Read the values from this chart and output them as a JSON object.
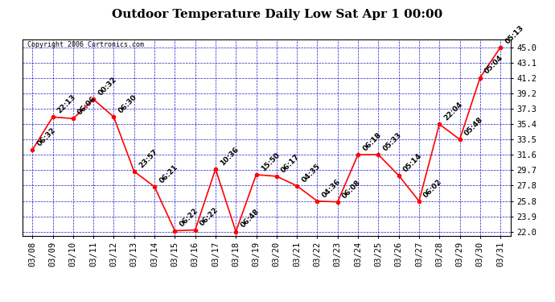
{
  "title": "Outdoor Temperature Daily Low Sat Apr 1 00:00",
  "copyright": "Copyright 2006 Curtronics.com",
  "x_labels": [
    "03/08",
    "03/09",
    "03/10",
    "03/11",
    "03/12",
    "03/13",
    "03/14",
    "03/15",
    "03/16",
    "03/17",
    "03/18",
    "03/19",
    "03/20",
    "03/21",
    "03/22",
    "03/23",
    "03/24",
    "03/25",
    "03/26",
    "03/27",
    "03/28",
    "03/29",
    "03/30",
    "03/31"
  ],
  "y_values": [
    32.2,
    36.3,
    36.1,
    38.5,
    36.3,
    29.5,
    27.6,
    22.1,
    22.2,
    29.8,
    22.0,
    29.1,
    28.9,
    27.7,
    25.8,
    25.7,
    31.6,
    31.6,
    29.0,
    25.8,
    35.4,
    33.5,
    41.2,
    45.0
  ],
  "point_labels": [
    "06:32",
    "22:13",
    "06:06",
    "00:32",
    "06:30",
    "23:57",
    "06:21",
    "06:22",
    "06:22",
    "10:36",
    "06:48",
    "15:50",
    "06:17",
    "04:35",
    "04:36",
    "06:08",
    "06:18",
    "05:33",
    "05:14",
    "06:02",
    "22:04",
    "05:48",
    "05:04",
    "05:13"
  ],
  "y_ticks": [
    22.0,
    23.9,
    25.8,
    27.8,
    29.7,
    31.6,
    33.5,
    35.4,
    37.3,
    39.2,
    41.2,
    43.1,
    45.0
  ],
  "ylim": [
    21.5,
    46.0
  ],
  "line_color": "red",
  "marker_color": "red",
  "grid_color": "#0000cc",
  "background_color": "white",
  "title_fontsize": 11,
  "tick_fontsize": 7.5,
  "label_fontsize": 6.5
}
